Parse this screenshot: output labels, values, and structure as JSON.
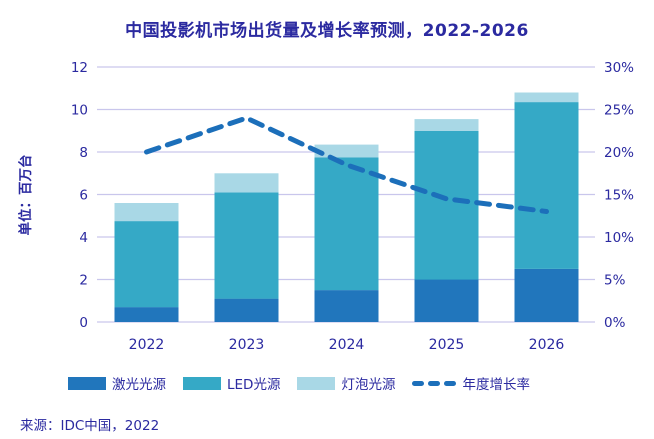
{
  "title": "中国投影机市场出货量及增长率预测，2022-2026",
  "source": "来源：IDC中国，2022",
  "colors": {
    "text": "#2b2aa0",
    "grid": "#c9c6ec",
    "bar_laser": "#2176bc",
    "bar_led": "#35a9c6",
    "bar_bulb": "#a9d8e6",
    "growth_line": "#1c6fba"
  },
  "chart_data": {
    "type": "bar",
    "subtype": "stacked-bar-with-line",
    "title": "中国投影机市场出货量及增长率预测，2022-2026",
    "categories": [
      "2022",
      "2023",
      "2024",
      "2025",
      "2026"
    ],
    "series": [
      {
        "name": "激光光源",
        "type": "bar",
        "color": "#2176bc",
        "values": [
          0.7,
          1.1,
          1.5,
          2.0,
          2.5
        ]
      },
      {
        "name": "LED光源",
        "type": "bar",
        "color": "#35a9c6",
        "values": [
          4.05,
          5.0,
          6.25,
          7.0,
          7.85
        ]
      },
      {
        "name": "灯泡光源",
        "type": "bar",
        "color": "#a9d8e6",
        "values": [
          0.85,
          0.9,
          0.6,
          0.55,
          0.45
        ]
      },
      {
        "name": "年度增长率",
        "type": "line",
        "axis": "right",
        "style": "dashed",
        "color": "#1c6fba",
        "values_pct": [
          20,
          24,
          18.5,
          14.5,
          13
        ]
      }
    ],
    "totals": [
      5.6,
      7.0,
      8.35,
      9.55,
      10.8
    ],
    "left_axis": {
      "label": "单位：百万台",
      "ticks": [
        0,
        2,
        4,
        6,
        8,
        10,
        12
      ],
      "min": 0,
      "max": 12
    },
    "right_axis": {
      "tick_labels": [
        "0%",
        "5%",
        "10%",
        "15%",
        "20%",
        "25%",
        "30%"
      ],
      "tick_values": [
        0,
        5,
        10,
        15,
        20,
        25,
        30
      ],
      "min": 0,
      "max": 30
    },
    "grid": "horizontal-on",
    "legend_position": "bottom"
  }
}
